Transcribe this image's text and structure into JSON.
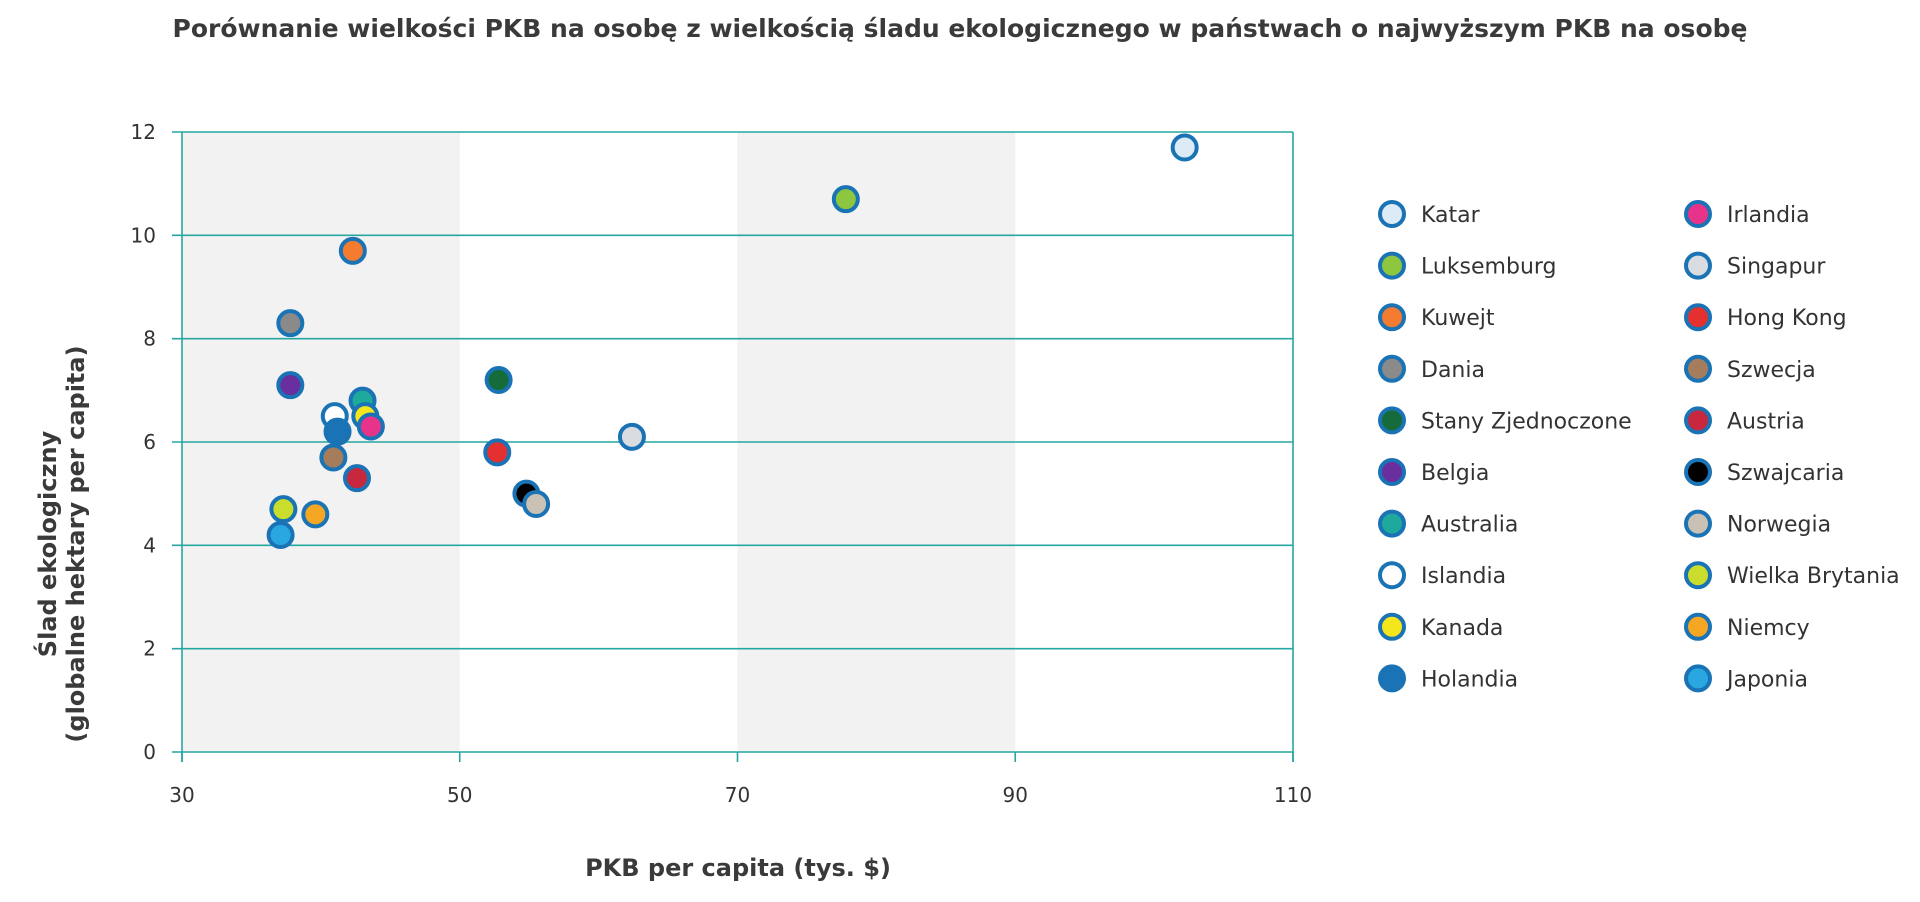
{
  "chart_data": {
    "type": "scatter",
    "title": "Porównanie wielkości PKB na osobę z wielkością śladu ekologicznego w państwach o najwyższym PKB na osobę",
    "xlabel": "PKB per capita (tys. $)",
    "ylabel_lines": [
      "Ślad ekologiczny",
      "(globalne hektary per capita)"
    ],
    "xlim": [
      30,
      110
    ],
    "ylim": [
      0,
      12
    ],
    "x_ticks": [
      30,
      50,
      70,
      90,
      110
    ],
    "y_ticks": [
      0,
      2,
      4,
      6,
      8,
      10,
      12
    ],
    "grid": "horizontal",
    "shaded_x_bands": [
      [
        30,
        50
      ],
      [
        70,
        90
      ]
    ],
    "legend_position": "right",
    "marker_edge_color": "#1a73b5",
    "band_color": "#f2f2f2",
    "grid_color": "#26a6a0",
    "series": [
      {
        "name": "Katar",
        "color": "#dcebf6",
        "x": 102.2,
        "y": 11.7
      },
      {
        "name": "Luksemburg",
        "color": "#8dc63f",
        "x": 77.8,
        "y": 10.7
      },
      {
        "name": "Kuwejt",
        "color": "#f47b30",
        "x": 42.3,
        "y": 9.7
      },
      {
        "name": "Dania",
        "color": "#8a8a8a",
        "x": 37.8,
        "y": 8.3
      },
      {
        "name": "Stany Zjednoczone",
        "color": "#156c3a",
        "x": 52.8,
        "y": 7.2
      },
      {
        "name": "Belgia",
        "color": "#6a2f9e",
        "x": 37.8,
        "y": 7.1
      },
      {
        "name": "Australia",
        "color": "#1fa89c",
        "x": 43.0,
        "y": 6.8
      },
      {
        "name": "Islandia",
        "color": "#ffffff",
        "x": 41.0,
        "y": 6.5
      },
      {
        "name": "Kanada",
        "color": "#f5e51c",
        "x": 43.2,
        "y": 6.5
      },
      {
        "name": "Holandia",
        "color": "#1a73b5",
        "x": 41.2,
        "y": 6.2
      },
      {
        "name": "Irlandia",
        "color": "#e8338a",
        "x": 43.6,
        "y": 6.3
      },
      {
        "name": "Singapur",
        "color": "#d9dde2",
        "x": 62.4,
        "y": 6.1
      },
      {
        "name": "Hong Kong",
        "color": "#e53030",
        "x": 52.7,
        "y": 5.8
      },
      {
        "name": "Szwecja",
        "color": "#a57d5c",
        "x": 40.9,
        "y": 5.7
      },
      {
        "name": "Austria",
        "color": "#c8283e",
        "x": 42.6,
        "y": 5.3
      },
      {
        "name": "Szwajcaria",
        "color": "#000000",
        "x": 54.8,
        "y": 5.0
      },
      {
        "name": "Norwegia",
        "color": "#c9c2b4",
        "x": 55.5,
        "y": 4.8
      },
      {
        "name": "Wielka Brytania",
        "color": "#c9de2c",
        "x": 37.3,
        "y": 4.7
      },
      {
        "name": "Niemcy",
        "color": "#f5a623",
        "x": 39.6,
        "y": 4.6
      },
      {
        "name": "Japonia",
        "color": "#2aa7e0",
        "x": 37.1,
        "y": 4.2
      }
    ]
  }
}
